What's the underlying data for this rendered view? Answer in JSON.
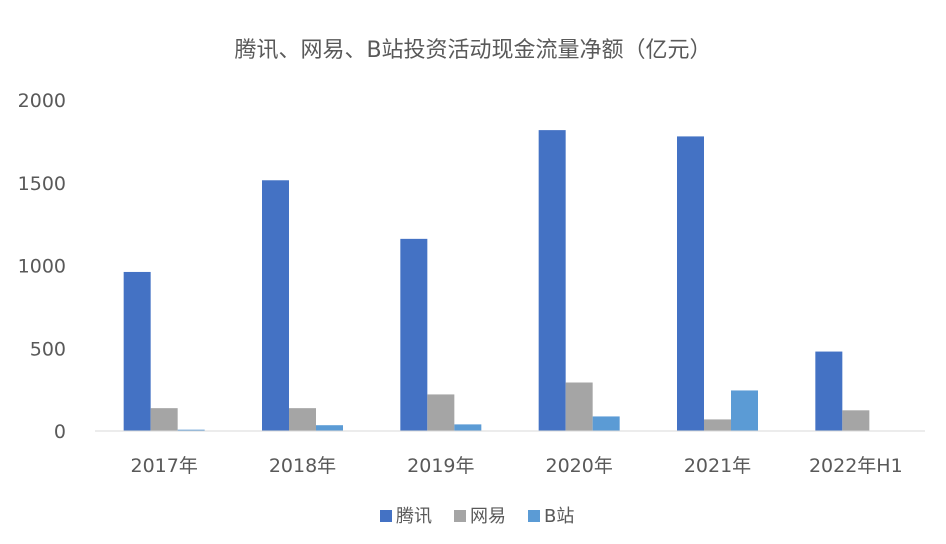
{
  "chart_data": {
    "type": "bar",
    "title": "腾讯、网易、B站投资活动现金流量净额（亿元）",
    "xlabel": "",
    "ylabel": "",
    "categories": [
      "2017年",
      "2018年",
      "2019年",
      "2020年",
      "2021年",
      "2022年H1"
    ],
    "series": [
      {
        "name": "腾讯",
        "color": "#4472C4",
        "values": [
          961,
          1515,
          1161,
          1818,
          1780,
          480
        ]
      },
      {
        "name": "网易",
        "color": "#A5A5A5",
        "values": [
          138,
          138,
          221,
          293,
          70,
          125
        ]
      },
      {
        "name": "B站",
        "color": "#5B9BD5",
        "values": [
          8,
          35,
          40,
          88,
          245,
          0
        ]
      }
    ],
    "ylim": [
      0,
      2000
    ],
    "yticks": [
      0,
      500,
      1000,
      1500,
      2000
    ],
    "grid": false,
    "legend_position": "bottom"
  }
}
